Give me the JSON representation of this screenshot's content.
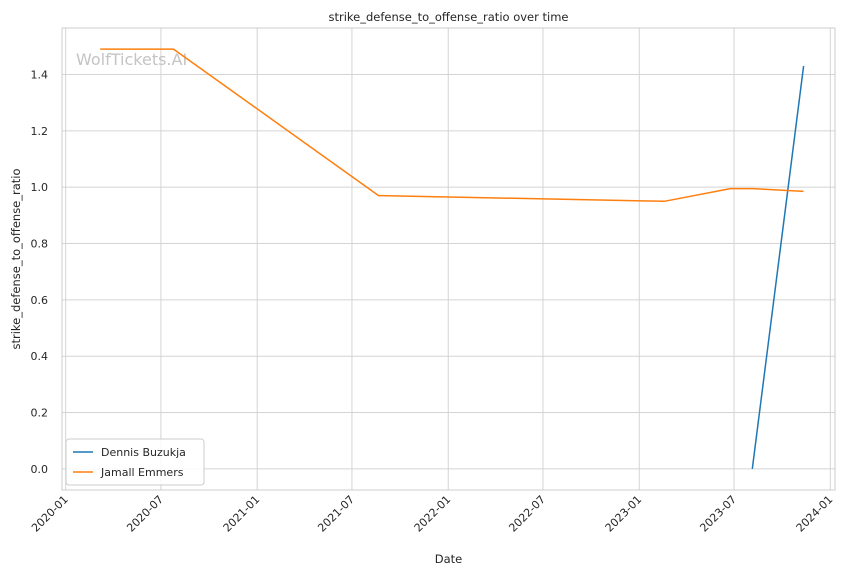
{
  "chart_data": {
    "type": "line",
    "title": "strike_defense_to_offense_ratio over time",
    "xlabel": "Date",
    "ylabel": "strike_defense_to_offense_ratio",
    "watermark": "WolfTickets.AI",
    "xlim": [
      "2019-12-25",
      "2024-01-10"
    ],
    "ylim": [
      -0.075,
      1.565
    ],
    "x_ticks": [
      "2020-01",
      "2020-07",
      "2021-01",
      "2021-07",
      "2022-01",
      "2022-07",
      "2023-01",
      "2023-07",
      "2024-01"
    ],
    "y_ticks": [
      0.0,
      0.2,
      0.4,
      0.6,
      0.8,
      1.0,
      1.2,
      1.4
    ],
    "grid": true,
    "legend_position": "lower-left",
    "series": [
      {
        "name": "Dennis Buzukja",
        "color": "#1f77b4",
        "x": [
          "2023-08-05",
          "2023-11-11"
        ],
        "y": [
          0.0,
          1.43
        ]
      },
      {
        "name": "Jamall Emmers",
        "color": "#ff7f0e",
        "x": [
          "2020-03-07",
          "2020-07-25",
          "2021-08-21",
          "2023-02-18",
          "2023-06-24",
          "2023-08-05",
          "2023-11-11"
        ],
        "y": [
          1.49,
          1.49,
          0.97,
          0.95,
          0.995,
          0.995,
          0.985
        ]
      }
    ]
  }
}
